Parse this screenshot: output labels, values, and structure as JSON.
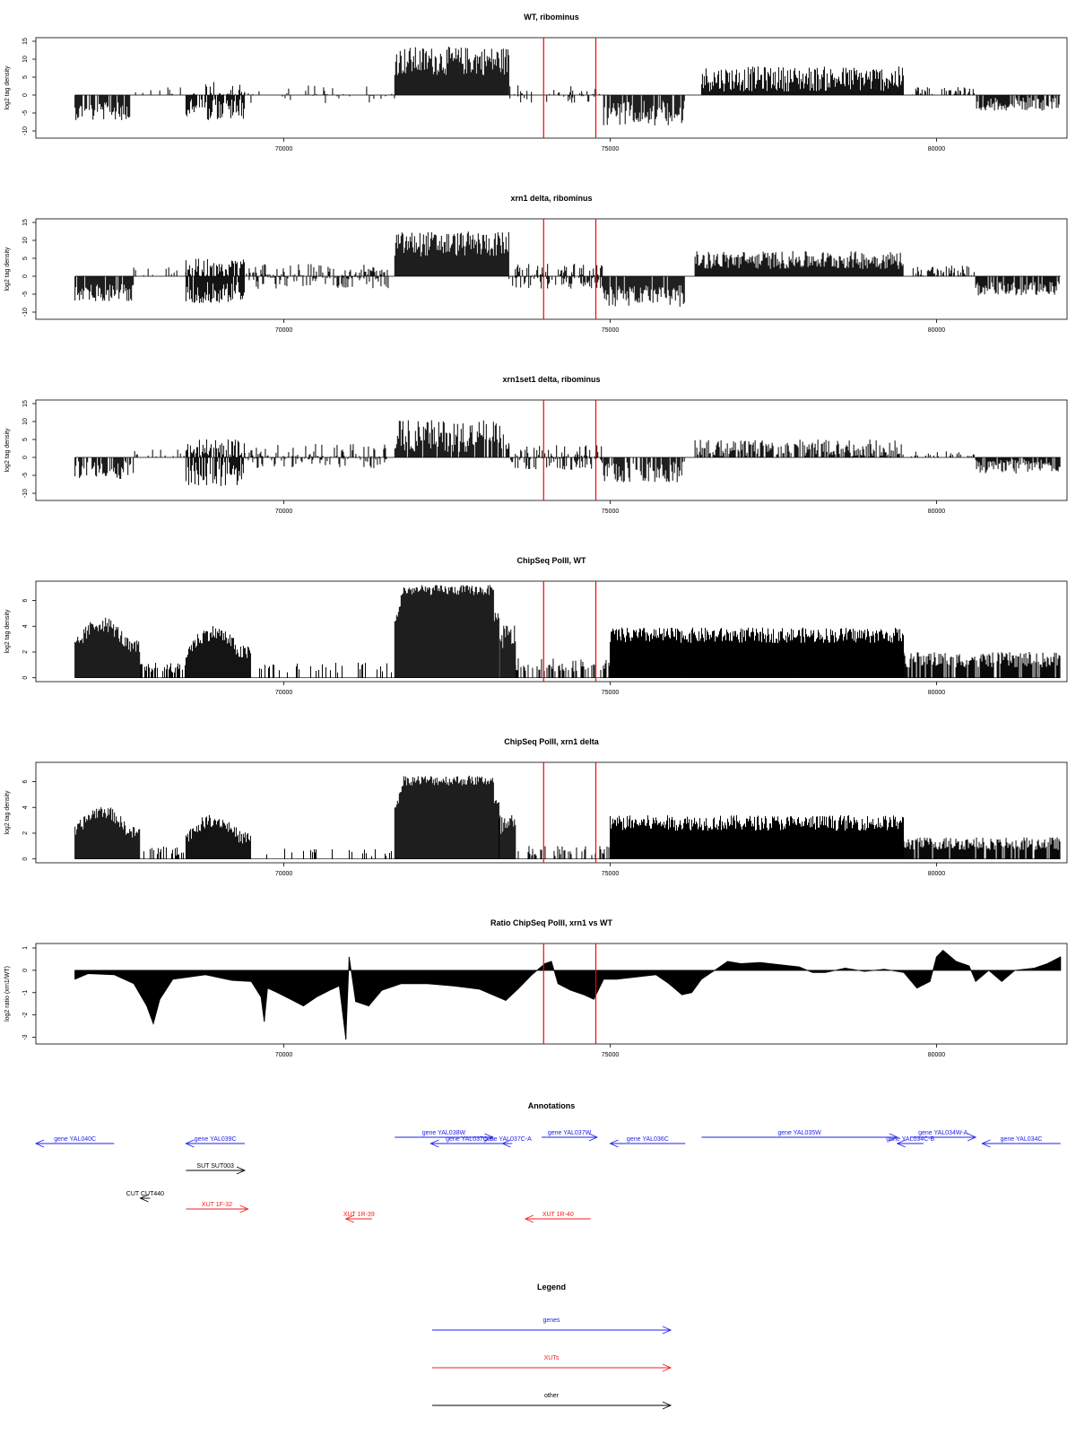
{
  "colors": {
    "genes": "#2222ee",
    "xuts": "#ee2222",
    "other": "#000000",
    "region_marker": "#ff0000",
    "bars": "#000000"
  },
  "x_axis": {
    "range": [
      66200,
      82000
    ],
    "ticks": [
      70000,
      75000,
      80000
    ]
  },
  "region_markers": [
    73980,
    74780
  ],
  "chart_data": [
    {
      "id": "wt_ribominus",
      "type": "bar",
      "title": "WT, ribominus",
      "ylabel": "log2 tag density",
      "xlabel": "",
      "ylim": [
        -12,
        16
      ],
      "yticks": [
        -10,
        -5,
        0,
        5,
        10,
        15
      ],
      "segments": [
        {
          "x0": 66800,
          "x1": 67650,
          "sign": -1,
          "amp": 4.5,
          "noise": 2.5,
          "dens": 0.8
        },
        {
          "x0": 67700,
          "x1": 68500,
          "sign": 1,
          "amp": 1.2,
          "noise": 1.2,
          "dens": 0.15
        },
        {
          "x0": 68500,
          "x1": 69400,
          "sign": -1,
          "amp": 4.0,
          "noise": 3.0,
          "dens": 0.8
        },
        {
          "x0": 68500,
          "x1": 69400,
          "sign": 1,
          "amp": 1.5,
          "noise": 2.5,
          "dens": 0.4
        },
        {
          "x0": 69400,
          "x1": 71700,
          "sign": 1,
          "amp": 0.8,
          "noise": 2.0,
          "dens": 0.1
        },
        {
          "x0": 69400,
          "x1": 71700,
          "sign": -1,
          "amp": 0.8,
          "noise": 1.5,
          "dens": 0.1
        },
        {
          "x0": 71700,
          "x1": 73450,
          "sign": 1,
          "amp": 9.5,
          "noise": 4.0,
          "dens": 1.0
        },
        {
          "x0": 73450,
          "x1": 74900,
          "sign": 1,
          "amp": 1.0,
          "noise": 2.0,
          "dens": 0.2
        },
        {
          "x0": 73450,
          "x1": 74900,
          "sign": -1,
          "amp": 0.8,
          "noise": 1.5,
          "dens": 0.15
        },
        {
          "x0": 74900,
          "x1": 76150,
          "sign": -1,
          "amp": 5.0,
          "noise": 3.5,
          "dens": 0.85
        },
        {
          "x0": 76400,
          "x1": 79500,
          "sign": 1,
          "amp": 4.5,
          "noise": 3.5,
          "dens": 1.0
        },
        {
          "x0": 79600,
          "x1": 80600,
          "sign": 1,
          "amp": 1.0,
          "noise": 1.5,
          "dens": 0.4
        },
        {
          "x0": 80600,
          "x1": 81900,
          "sign": -1,
          "amp": 2.5,
          "noise": 1.8,
          "dens": 0.8
        }
      ]
    },
    {
      "id": "xrn1_ribominus",
      "type": "bar",
      "title": "xrn1 delta, ribominus",
      "ylabel": "log2 tag density",
      "xlabel": "",
      "ylim": [
        -12,
        16
      ],
      "yticks": [
        -10,
        -5,
        0,
        5,
        10,
        15
      ],
      "segments": [
        {
          "x0": 66800,
          "x1": 67700,
          "sign": -1,
          "amp": 4.5,
          "noise": 2.5,
          "dens": 0.9
        },
        {
          "x0": 67700,
          "x1": 68500,
          "sign": 1,
          "amp": 1.0,
          "noise": 1.5,
          "dens": 0.2
        },
        {
          "x0": 68500,
          "x1": 69400,
          "sign": -1,
          "amp": 4.5,
          "noise": 3.0,
          "dens": 0.9
        },
        {
          "x0": 68500,
          "x1": 69400,
          "sign": 1,
          "amp": 2.5,
          "noise": 2.5,
          "dens": 0.8
        },
        {
          "x0": 69400,
          "x1": 71600,
          "sign": 1,
          "amp": 1.5,
          "noise": 2.0,
          "dens": 0.4
        },
        {
          "x0": 69400,
          "x1": 71600,
          "sign": -1,
          "amp": 1.5,
          "noise": 2.0,
          "dens": 0.4
        },
        {
          "x0": 71700,
          "x1": 73450,
          "sign": 1,
          "amp": 9.0,
          "noise": 3.5,
          "dens": 1.0
        },
        {
          "x0": 73450,
          "x1": 74900,
          "sign": 1,
          "amp": 1.5,
          "noise": 2.0,
          "dens": 0.5
        },
        {
          "x0": 73450,
          "x1": 74900,
          "sign": -1,
          "amp": 1.5,
          "noise": 2.0,
          "dens": 0.5
        },
        {
          "x0": 74900,
          "x1": 76150,
          "sign": -1,
          "amp": 5.5,
          "noise": 3.0,
          "dens": 0.9
        },
        {
          "x0": 76300,
          "x1": 79500,
          "sign": 1,
          "amp": 4.5,
          "noise": 2.5,
          "dens": 1.0
        },
        {
          "x0": 79600,
          "x1": 80600,
          "sign": 1,
          "amp": 1.5,
          "noise": 1.5,
          "dens": 0.5
        },
        {
          "x0": 80600,
          "x1": 81900,
          "sign": -1,
          "amp": 3.5,
          "noise": 2.0,
          "dens": 0.9
        }
      ]
    },
    {
      "id": "xrn1set1_ribominus",
      "type": "bar",
      "title": "xrn1set1 delta, ribominus",
      "ylabel": "log2 tag density",
      "xlabel": "",
      "ylim": [
        -12,
        16
      ],
      "yticks": [
        -10,
        -5,
        0,
        5,
        10,
        15
      ],
      "segments": [
        {
          "x0": 66800,
          "x1": 67700,
          "sign": -1,
          "amp": 3.5,
          "noise": 2.5,
          "dens": 0.7
        },
        {
          "x0": 67700,
          "x1": 68500,
          "sign": 1,
          "amp": 1.0,
          "noise": 1.2,
          "dens": 0.15
        },
        {
          "x0": 68500,
          "x1": 69400,
          "sign": -1,
          "amp": 4.5,
          "noise": 3.5,
          "dens": 0.8
        },
        {
          "x0": 68500,
          "x1": 69400,
          "sign": 1,
          "amp": 2.5,
          "noise": 2.5,
          "dens": 0.7
        },
        {
          "x0": 69400,
          "x1": 71600,
          "sign": 1,
          "amp": 1.5,
          "noise": 2.5,
          "dens": 0.35
        },
        {
          "x0": 69400,
          "x1": 71600,
          "sign": -1,
          "amp": 1.2,
          "noise": 1.8,
          "dens": 0.3
        },
        {
          "x0": 71700,
          "x1": 73450,
          "sign": 1,
          "amp": 6.0,
          "noise": 4.5,
          "dens": 0.9
        },
        {
          "x0": 73450,
          "x1": 74900,
          "sign": 1,
          "amp": 1.5,
          "noise": 2.0,
          "dens": 0.45
        },
        {
          "x0": 73450,
          "x1": 74900,
          "sign": -1,
          "amp": 1.5,
          "noise": 2.0,
          "dens": 0.45
        },
        {
          "x0": 74900,
          "x1": 76150,
          "sign": -1,
          "amp": 4.0,
          "noise": 3.0,
          "dens": 0.7
        },
        {
          "x0": 76300,
          "x1": 79500,
          "sign": 1,
          "amp": 2.5,
          "noise": 2.5,
          "dens": 0.7
        },
        {
          "x0": 79600,
          "x1": 80600,
          "sign": 1,
          "amp": 0.8,
          "noise": 1.0,
          "dens": 0.25
        },
        {
          "x0": 80600,
          "x1": 81900,
          "sign": -1,
          "amp": 2.5,
          "noise": 2.0,
          "dens": 0.8
        }
      ]
    },
    {
      "id": "chipseq_wt",
      "type": "bar",
      "title": "ChipSeq PolII, WT",
      "ylabel": "log2 tag density",
      "xlabel": "",
      "ylim": [
        -0.3,
        7.5
      ],
      "yticks": [
        0,
        2,
        4,
        6
      ],
      "segments": [
        {
          "x0": 66800,
          "x1": 67800,
          "sign": 1,
          "amp": 4.2,
          "noise": 0.6,
          "dens": 1.0,
          "shape": "hump"
        },
        {
          "x0": 67800,
          "x1": 68500,
          "sign": 1,
          "amp": 0.8,
          "noise": 0.4,
          "dens": 0.5
        },
        {
          "x0": 68500,
          "x1": 69500,
          "sign": 1,
          "amp": 3.5,
          "noise": 0.6,
          "dens": 1.0,
          "shape": "hump"
        },
        {
          "x0": 69600,
          "x1": 71650,
          "sign": 1,
          "amp": 0.8,
          "noise": 0.4,
          "dens": 0.35
        },
        {
          "x0": 71700,
          "x1": 73300,
          "sign": 1,
          "amp": 6.8,
          "noise": 0.4,
          "dens": 1.0,
          "shape": "plateau"
        },
        {
          "x0": 73300,
          "x1": 73550,
          "sign": 1,
          "amp": 3.2,
          "noise": 1.0,
          "dens": 0.9
        },
        {
          "x0": 73550,
          "x1": 75000,
          "sign": 1,
          "amp": 1.0,
          "noise": 0.5,
          "dens": 0.5
        },
        {
          "x0": 75000,
          "x1": 79500,
          "sign": 1,
          "amp": 3.3,
          "noise": 0.6,
          "dens": 1.0
        },
        {
          "x0": 79500,
          "x1": 81900,
          "sign": 1,
          "amp": 1.4,
          "noise": 0.6,
          "dens": 0.85
        }
      ]
    },
    {
      "id": "chipseq_xrn1",
      "type": "bar",
      "title": "ChipSeq PolII, xrn1 delta",
      "ylabel": "log2 tag density",
      "xlabel": "",
      "ylim": [
        -0.3,
        7.5
      ],
      "yticks": [
        0,
        2,
        4,
        6
      ],
      "segments": [
        {
          "x0": 66800,
          "x1": 67800,
          "sign": 1,
          "amp": 3.7,
          "noise": 0.5,
          "dens": 1.0,
          "shape": "hump"
        },
        {
          "x0": 67800,
          "x1": 68500,
          "sign": 1,
          "amp": 0.6,
          "noise": 0.4,
          "dens": 0.35
        },
        {
          "x0": 68500,
          "x1": 69500,
          "sign": 1,
          "amp": 3.0,
          "noise": 0.5,
          "dens": 1.0,
          "shape": "hump"
        },
        {
          "x0": 69600,
          "x1": 71650,
          "sign": 1,
          "amp": 0.5,
          "noise": 0.3,
          "dens": 0.15
        },
        {
          "x0": 71700,
          "x1": 73300,
          "sign": 1,
          "amp": 6.1,
          "noise": 0.4,
          "dens": 1.0,
          "shape": "plateau"
        },
        {
          "x0": 73300,
          "x1": 73550,
          "sign": 1,
          "amp": 2.5,
          "noise": 1.0,
          "dens": 0.9
        },
        {
          "x0": 73550,
          "x1": 75000,
          "sign": 1,
          "amp": 0.6,
          "noise": 0.4,
          "dens": 0.4
        },
        {
          "x0": 75000,
          "x1": 79500,
          "sign": 1,
          "amp": 2.8,
          "noise": 0.6,
          "dens": 1.0
        },
        {
          "x0": 79500,
          "x1": 81900,
          "sign": 1,
          "amp": 1.2,
          "noise": 0.5,
          "dens": 0.9
        }
      ]
    },
    {
      "id": "ratio_xrn1_wt",
      "type": "area",
      "title": "Ratio ChipSeq PolII, xrn1 vs WT",
      "ylabel": "log2 ratio (xrn1/WT)",
      "xlabel": "",
      "ylim": [
        -3.3,
        1.2
      ],
      "yticks": [
        -3,
        -2,
        -1,
        0,
        1
      ],
      "points": [
        [
          66800,
          -0.4
        ],
        [
          67000,
          -0.15
        ],
        [
          67400,
          -0.2
        ],
        [
          67700,
          -0.6
        ],
        [
          67900,
          -1.6
        ],
        [
          68000,
          -2.4
        ],
        [
          68100,
          -1.3
        ],
        [
          68300,
          -0.4
        ],
        [
          68800,
          -0.2
        ],
        [
          69200,
          -0.45
        ],
        [
          69500,
          -0.5
        ],
        [
          69650,
          -1.2
        ],
        [
          69700,
          -2.3
        ],
        [
          69750,
          -0.8
        ],
        [
          69900,
          -1.0
        ],
        [
          70100,
          -1.3
        ],
        [
          70300,
          -1.6
        ],
        [
          70500,
          -1.2
        ],
        [
          70700,
          -0.9
        ],
        [
          70850,
          -0.7
        ],
        [
          70950,
          -3.1
        ],
        [
          71000,
          0.6
        ],
        [
          71100,
          -1.4
        ],
        [
          71300,
          -1.6
        ],
        [
          71500,
          -0.9
        ],
        [
          71800,
          -0.6
        ],
        [
          72200,
          -0.6
        ],
        [
          72600,
          -0.7
        ],
        [
          73000,
          -0.85
        ],
        [
          73200,
          -1.1
        ],
        [
          73400,
          -1.35
        ],
        [
          73600,
          -0.8
        ],
        [
          73800,
          -0.2
        ],
        [
          74000,
          0.3
        ],
        [
          74100,
          0.4
        ],
        [
          74200,
          -0.6
        ],
        [
          74400,
          -0.9
        ],
        [
          74600,
          -1.1
        ],
        [
          74750,
          -1.3
        ],
        [
          74900,
          -0.4
        ],
        [
          75100,
          -0.4
        ],
        [
          75400,
          -0.3
        ],
        [
          75700,
          -0.2
        ],
        [
          75900,
          -0.6
        ],
        [
          76100,
          -1.1
        ],
        [
          76250,
          -1.0
        ],
        [
          76400,
          -0.4
        ],
        [
          76600,
          0.0
        ],
        [
          76800,
          0.4
        ],
        [
          77000,
          0.3
        ],
        [
          77300,
          0.35
        ],
        [
          77600,
          0.25
        ],
        [
          77900,
          0.15
        ],
        [
          78100,
          -0.1
        ],
        [
          78300,
          -0.1
        ],
        [
          78600,
          0.1
        ],
        [
          78900,
          -0.05
        ],
        [
          79200,
          0.05
        ],
        [
          79500,
          -0.1
        ],
        [
          79700,
          -0.8
        ],
        [
          79900,
          -0.5
        ],
        [
          80000,
          0.6
        ],
        [
          80100,
          0.9
        ],
        [
          80300,
          0.4
        ],
        [
          80500,
          0.2
        ],
        [
          80600,
          -0.5
        ],
        [
          80800,
          0.0
        ],
        [
          81000,
          -0.5
        ],
        [
          81200,
          0.0
        ],
        [
          81500,
          0.1
        ],
        [
          81700,
          0.3
        ],
        [
          81900,
          0.6
        ]
      ]
    }
  ],
  "annotations": {
    "title": "Annotations",
    "genes": [
      {
        "label": "gene YAL040C",
        "x0": 66200,
        "x1": 67400,
        "dir": "left",
        "row": 2
      },
      {
        "label": "gene YAL039C",
        "x0": 68500,
        "x1": 69400,
        "dir": "left",
        "row": 2
      },
      {
        "label": "gene YAL038W",
        "x0": 71700,
        "x1": 73200,
        "dir": "right",
        "row": 1
      },
      {
        "label": "gene YAL037C-B",
        "x0": 72250,
        "x1": 73450,
        "dir": "left",
        "row": 2
      },
      {
        "label": "gene YAL037C-A",
        "x0": 73350,
        "x1": 73500,
        "dir": "left",
        "row": 2
      },
      {
        "label": "gene YAL037W",
        "x0": 73950,
        "x1": 74800,
        "dir": "right",
        "row": 1
      },
      {
        "label": "gene YAL036C",
        "x0": 75000,
        "x1": 76150,
        "dir": "left",
        "row": 2
      },
      {
        "label": "gene YAL035W",
        "x0": 76400,
        "x1": 79400,
        "dir": "right",
        "row": 1
      },
      {
        "label": "gene YAL034C-B",
        "x0": 79400,
        "x1": 79800,
        "dir": "left",
        "row": 2
      },
      {
        "label": "gene YAL034W-A",
        "x0": 79600,
        "x1": 80600,
        "dir": "right",
        "row": 1
      },
      {
        "label": "gene YAL034C",
        "x0": 80700,
        "x1": 81900,
        "dir": "left",
        "row": 2
      }
    ],
    "other": [
      {
        "label": "SUT SUT003",
        "x0": 68500,
        "x1": 69400,
        "dir": "right",
        "row": 3
      },
      {
        "label": "CUT CUT440",
        "x0": 67800,
        "x1": 67950,
        "dir": "left",
        "row": 4
      }
    ],
    "xuts": [
      {
        "label": "XUT 1F-32",
        "x0": 68500,
        "x1": 69450,
        "dir": "right",
        "row": 5
      },
      {
        "label": "XUT 1R-39",
        "x0": 70950,
        "x1": 71350,
        "dir": "left",
        "row": 6
      },
      {
        "label": "XUT 1R-40",
        "x0": 73700,
        "x1": 74700,
        "dir": "left",
        "row": 6
      }
    ]
  },
  "legend": {
    "title": "Legend",
    "items": [
      {
        "label": "genes",
        "color": "#2222ee"
      },
      {
        "label": "XUTs",
        "color": "#ee2222"
      },
      {
        "label": "other",
        "color": "#000000"
      }
    ]
  }
}
